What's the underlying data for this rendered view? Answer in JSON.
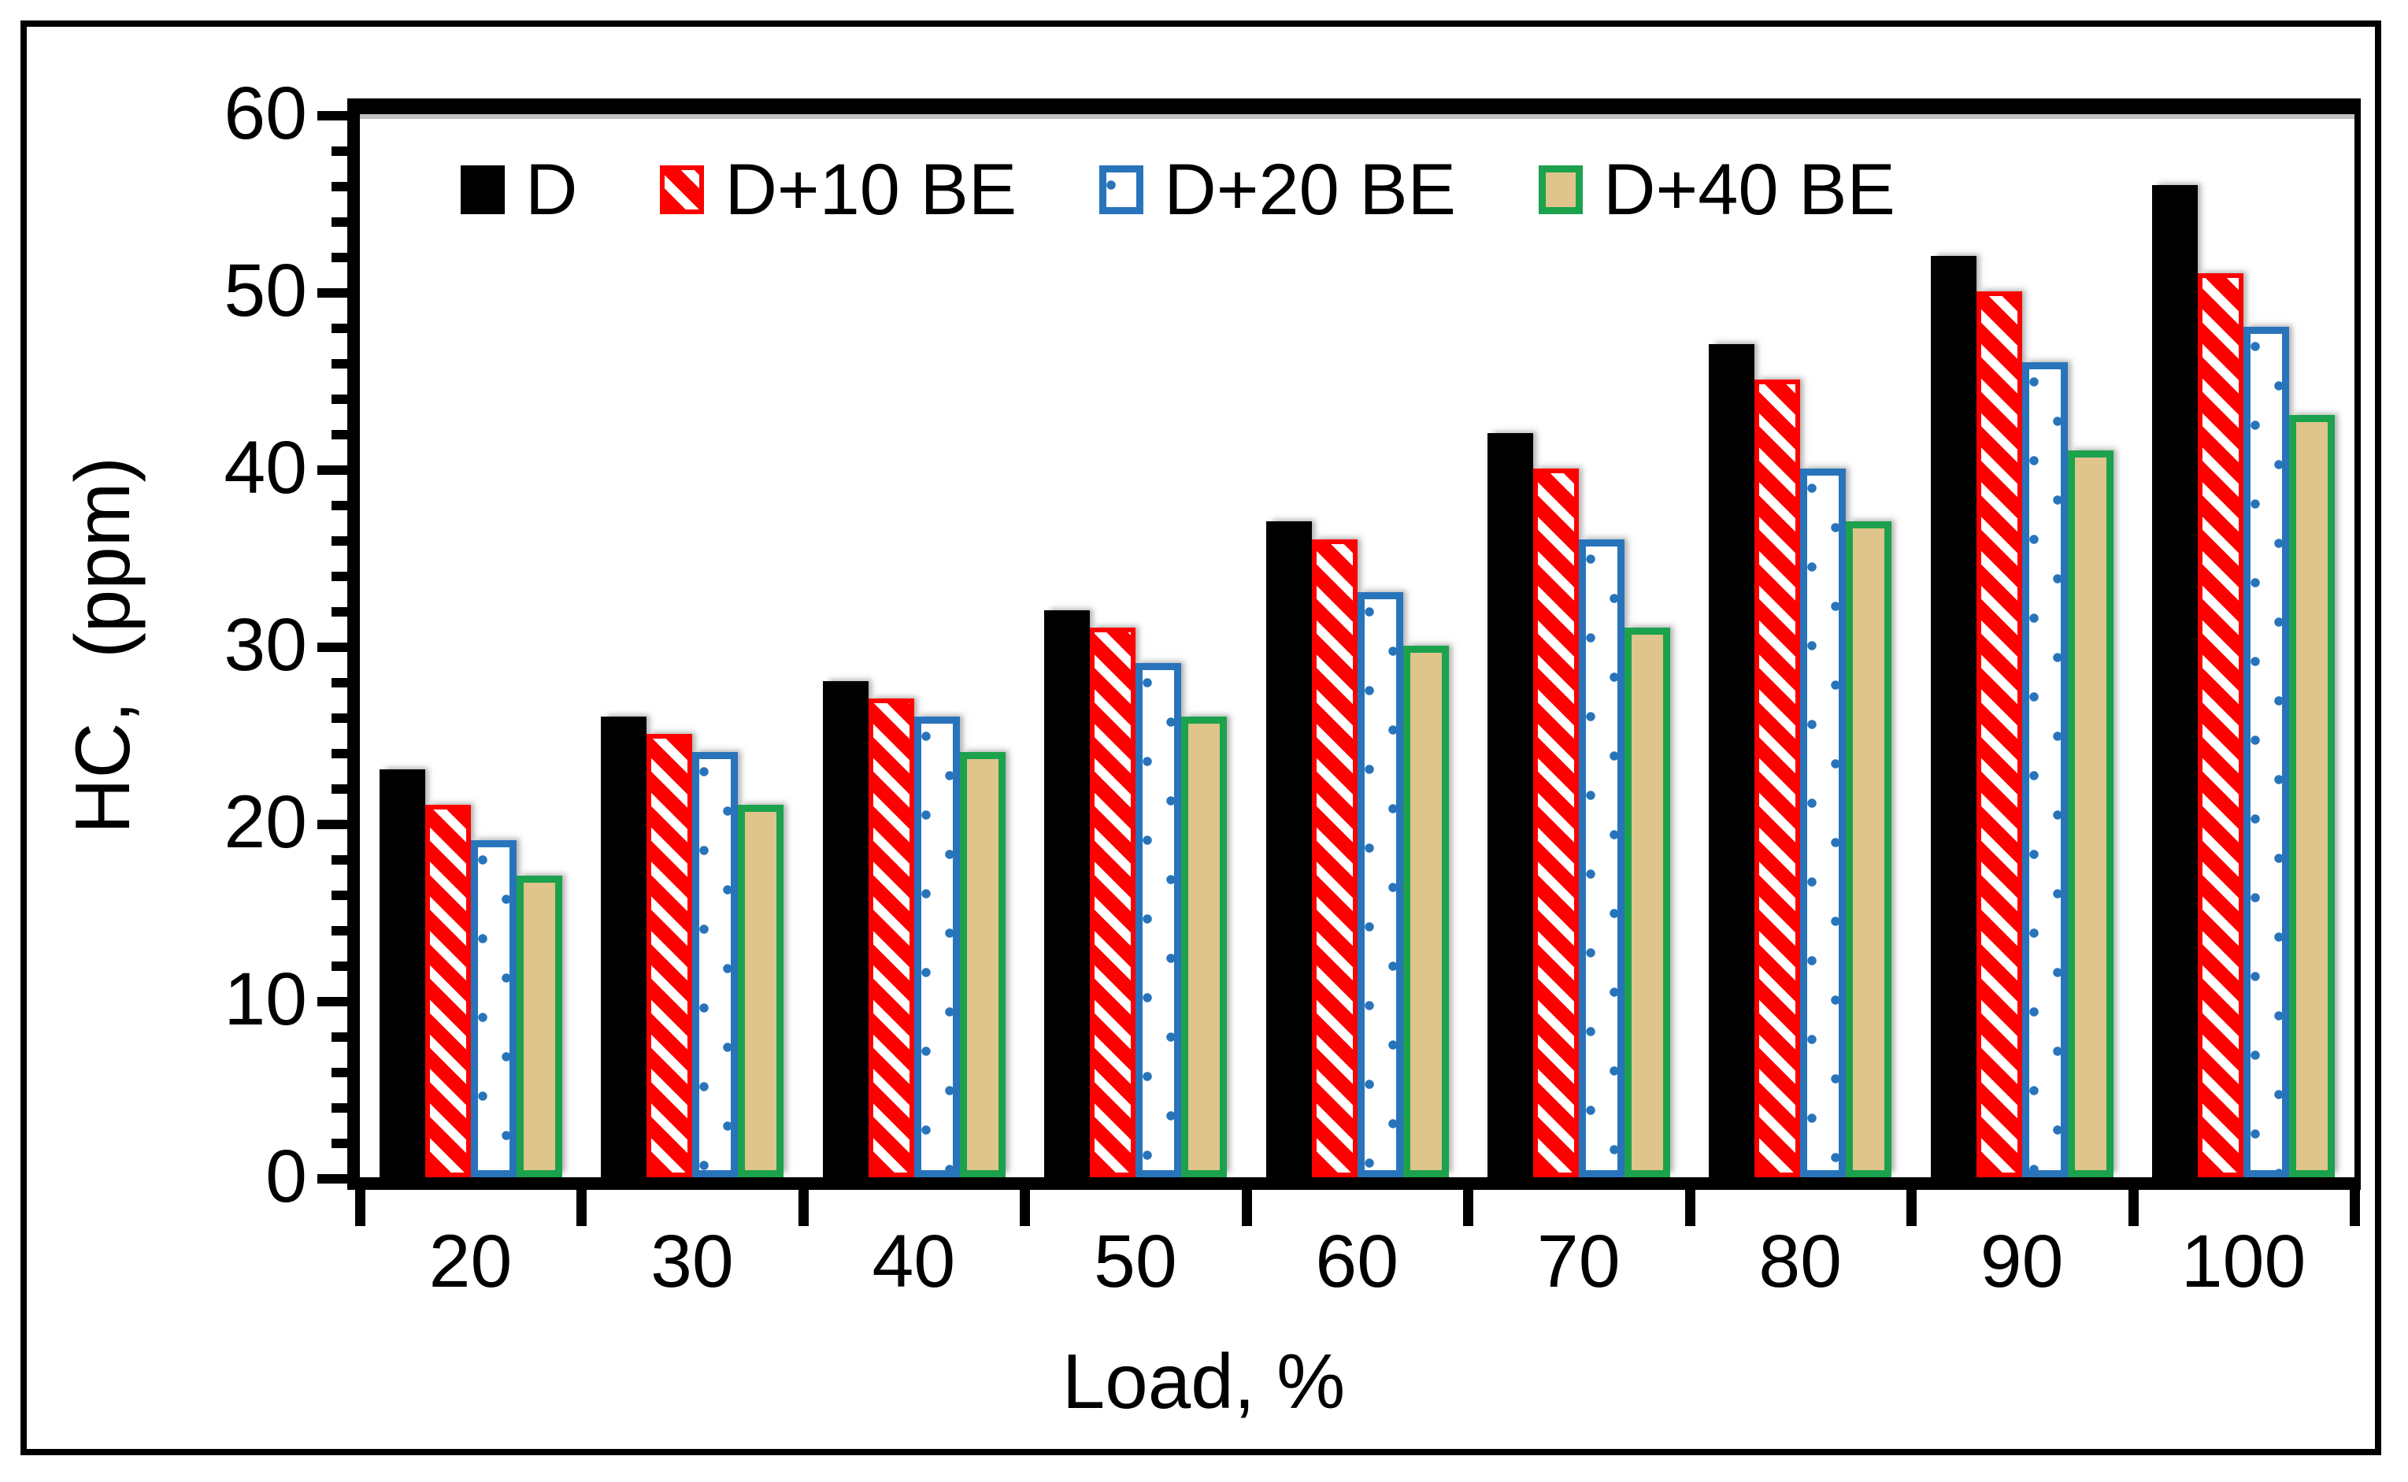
{
  "figure": {
    "background": "#ffffff",
    "border_color": "#000000",
    "axis_color": "#000000"
  },
  "chart_data": {
    "type": "bar",
    "title": "",
    "xlabel": "Load, %",
    "ylabel": "HC,  (ppm)",
    "categories": [
      "20",
      "30",
      "40",
      "50",
      "60",
      "70",
      "80",
      "90",
      "100"
    ],
    "series": [
      {
        "name": "D",
        "color": "#000000",
        "pattern": "solid-black",
        "values": [
          23,
          26,
          28,
          32,
          37,
          42,
          47,
          52,
          56
        ]
      },
      {
        "name": "D+10 BE",
        "color": "#fe0000",
        "pattern": "red-diagonal-hatch",
        "values": [
          21,
          25,
          27,
          31,
          36,
          40,
          45,
          50,
          51
        ]
      },
      {
        "name": "D+20 BE",
        "color": "#2874bb",
        "pattern": "white-blue-dots-outline",
        "values": [
          19,
          24,
          26,
          29,
          33,
          36,
          40,
          46,
          48
        ]
      },
      {
        "name": "D+40 BE",
        "color": "#1ca24d",
        "fill": "#dfc48c",
        "pattern": "tan-green-outline",
        "values": [
          17,
          21,
          24,
          26,
          30,
          31,
          37,
          41,
          43
        ]
      }
    ],
    "ylim": [
      0,
      60
    ],
    "yticks_major": [
      0,
      10,
      20,
      30,
      40,
      50,
      60
    ],
    "ytick_minor_step": 2,
    "grid": false,
    "legend_position": "top-inside"
  }
}
